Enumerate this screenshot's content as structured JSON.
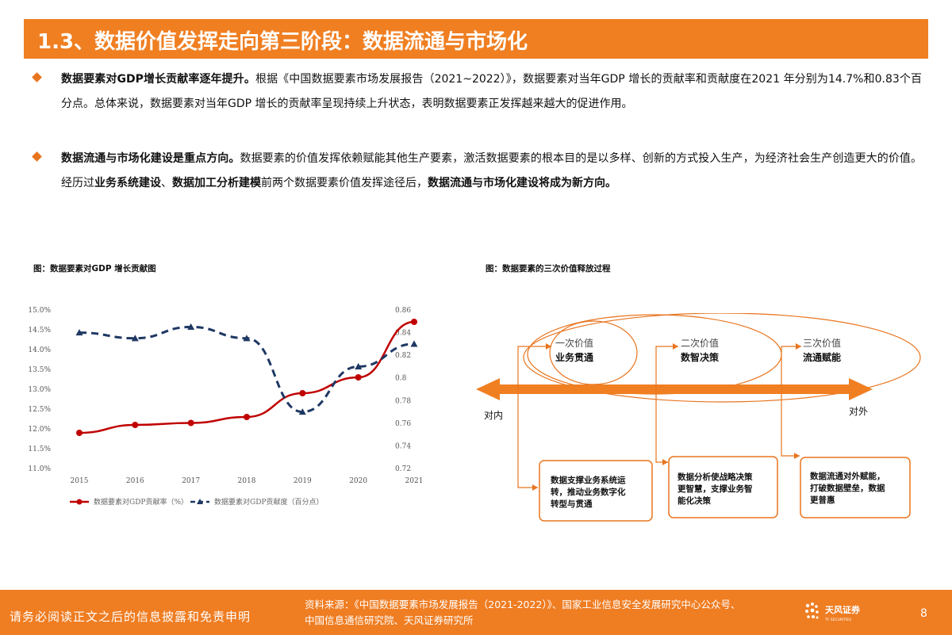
{
  "title": "1.3、数据价值发挥走向第三阶段：数据流通与市场化",
  "bullets": [
    {
      "segments": [
        {
          "text": "数据要素对GDP增长贡献率逐年提升。",
          "bold": true
        },
        {
          "text": "根据《中国数据要素市场发展报告（2021~2022）》，数据要素对当年GDP 增长的贡献率和贡献度在2021 年分别为14.7%和0.83个百分点。总体来说，数据要素对当年GDP 增长的贡献率呈现持续上升状态，表明数据要素正发挥越来越大的促进作用。",
          "bold": false
        }
      ]
    },
    {
      "segments": [
        {
          "text": "数据流通与市场化建设是重点方向。",
          "bold": true
        },
        {
          "text": "数据要素的价值发挥依赖赋能其他生产要素，激活数据要素的根本目的是以多样、创新的方式投入生产，为经济社会生产创造更大的价值。经历过",
          "bold": false
        },
        {
          "text": "业务系统建设",
          "bold": true
        },
        {
          "text": "、",
          "bold": false
        },
        {
          "text": "数据加工分析建模",
          "bold": true
        },
        {
          "text": "前两个数据要素价值发挥途径后，",
          "bold": false
        },
        {
          "text": "数据流通与市场化建设将成为新方向。",
          "bold": true
        }
      ]
    }
  ],
  "left_chart_title": "图：数据要素对GDP 增长贡献图",
  "right_chart_title": "图：数据要素的三次价值释放过程",
  "chart_data": {
    "type": "line",
    "x": [
      "2015",
      "2016",
      "2017",
      "2018",
      "2019",
      "2020",
      "2021"
    ],
    "y_left_ticks": [
      "15.0%",
      "14.5%",
      "14.0%",
      "13.5%",
      "13.0%",
      "12.5%",
      "12.0%",
      "11.5%",
      "11.0%"
    ],
    "y_right_ticks": [
      "0.86",
      "0.84",
      "0.82",
      "0.8",
      "0.78",
      "0.76",
      "0.74",
      "0.72"
    ],
    "ylim_left": [
      11.0,
      15.0
    ],
    "ylim_right": [
      0.72,
      0.86
    ],
    "grid": false,
    "legend_position": "bottom",
    "series": [
      {
        "name": "数据要素对GDP贡献率（%）",
        "axis": "left",
        "color": "#c00000",
        "style": "solid",
        "marker": "circle",
        "values": [
          11.9,
          12.1,
          12.15,
          12.3,
          12.9,
          13.3,
          14.7
        ]
      },
      {
        "name": "数据要素对GDP贡献度（百分点）",
        "axis": "right",
        "color": "#1f3864",
        "style": "dashed",
        "marker": "triangle",
        "values": [
          0.84,
          0.835,
          0.845,
          0.835,
          0.77,
          0.81,
          0.83
        ]
      }
    ]
  },
  "diagram": {
    "stage1": {
      "line1": "一次价值",
      "line2": "业务贯通"
    },
    "stage2": {
      "line1": "二次价值",
      "line2": "数智决策"
    },
    "stage3": {
      "line1": "三次价值",
      "line2": "流通赋能"
    },
    "left_label": "对内",
    "right_label": "对外",
    "box1": [
      "数据支撑业务系统运",
      "转，推动业务数字化",
      "转型与贯通"
    ],
    "box2": [
      "数据分析使战略决策",
      "更智慧，支撑业务智",
      "能化决策"
    ],
    "box3": [
      "数据流通对外赋能，",
      "打破数据壁垒，数据",
      "更普惠"
    ],
    "colors": {
      "arrow": "#f07f22",
      "lines": "#e8741e"
    }
  },
  "footer": {
    "disclaimer": "请务必阅读正文之后的信息披露和免责申明",
    "source_line1": "资料来源：《中国数据要素市场发展报告（2021-2022）》、国家工业信息安全发展研究中心公众号、",
    "source_line2": "中国信息通信研究院、天风证券研究所",
    "logo_text": "天风证券",
    "logo_sub": "TF SECURITIES",
    "page": "8"
  }
}
